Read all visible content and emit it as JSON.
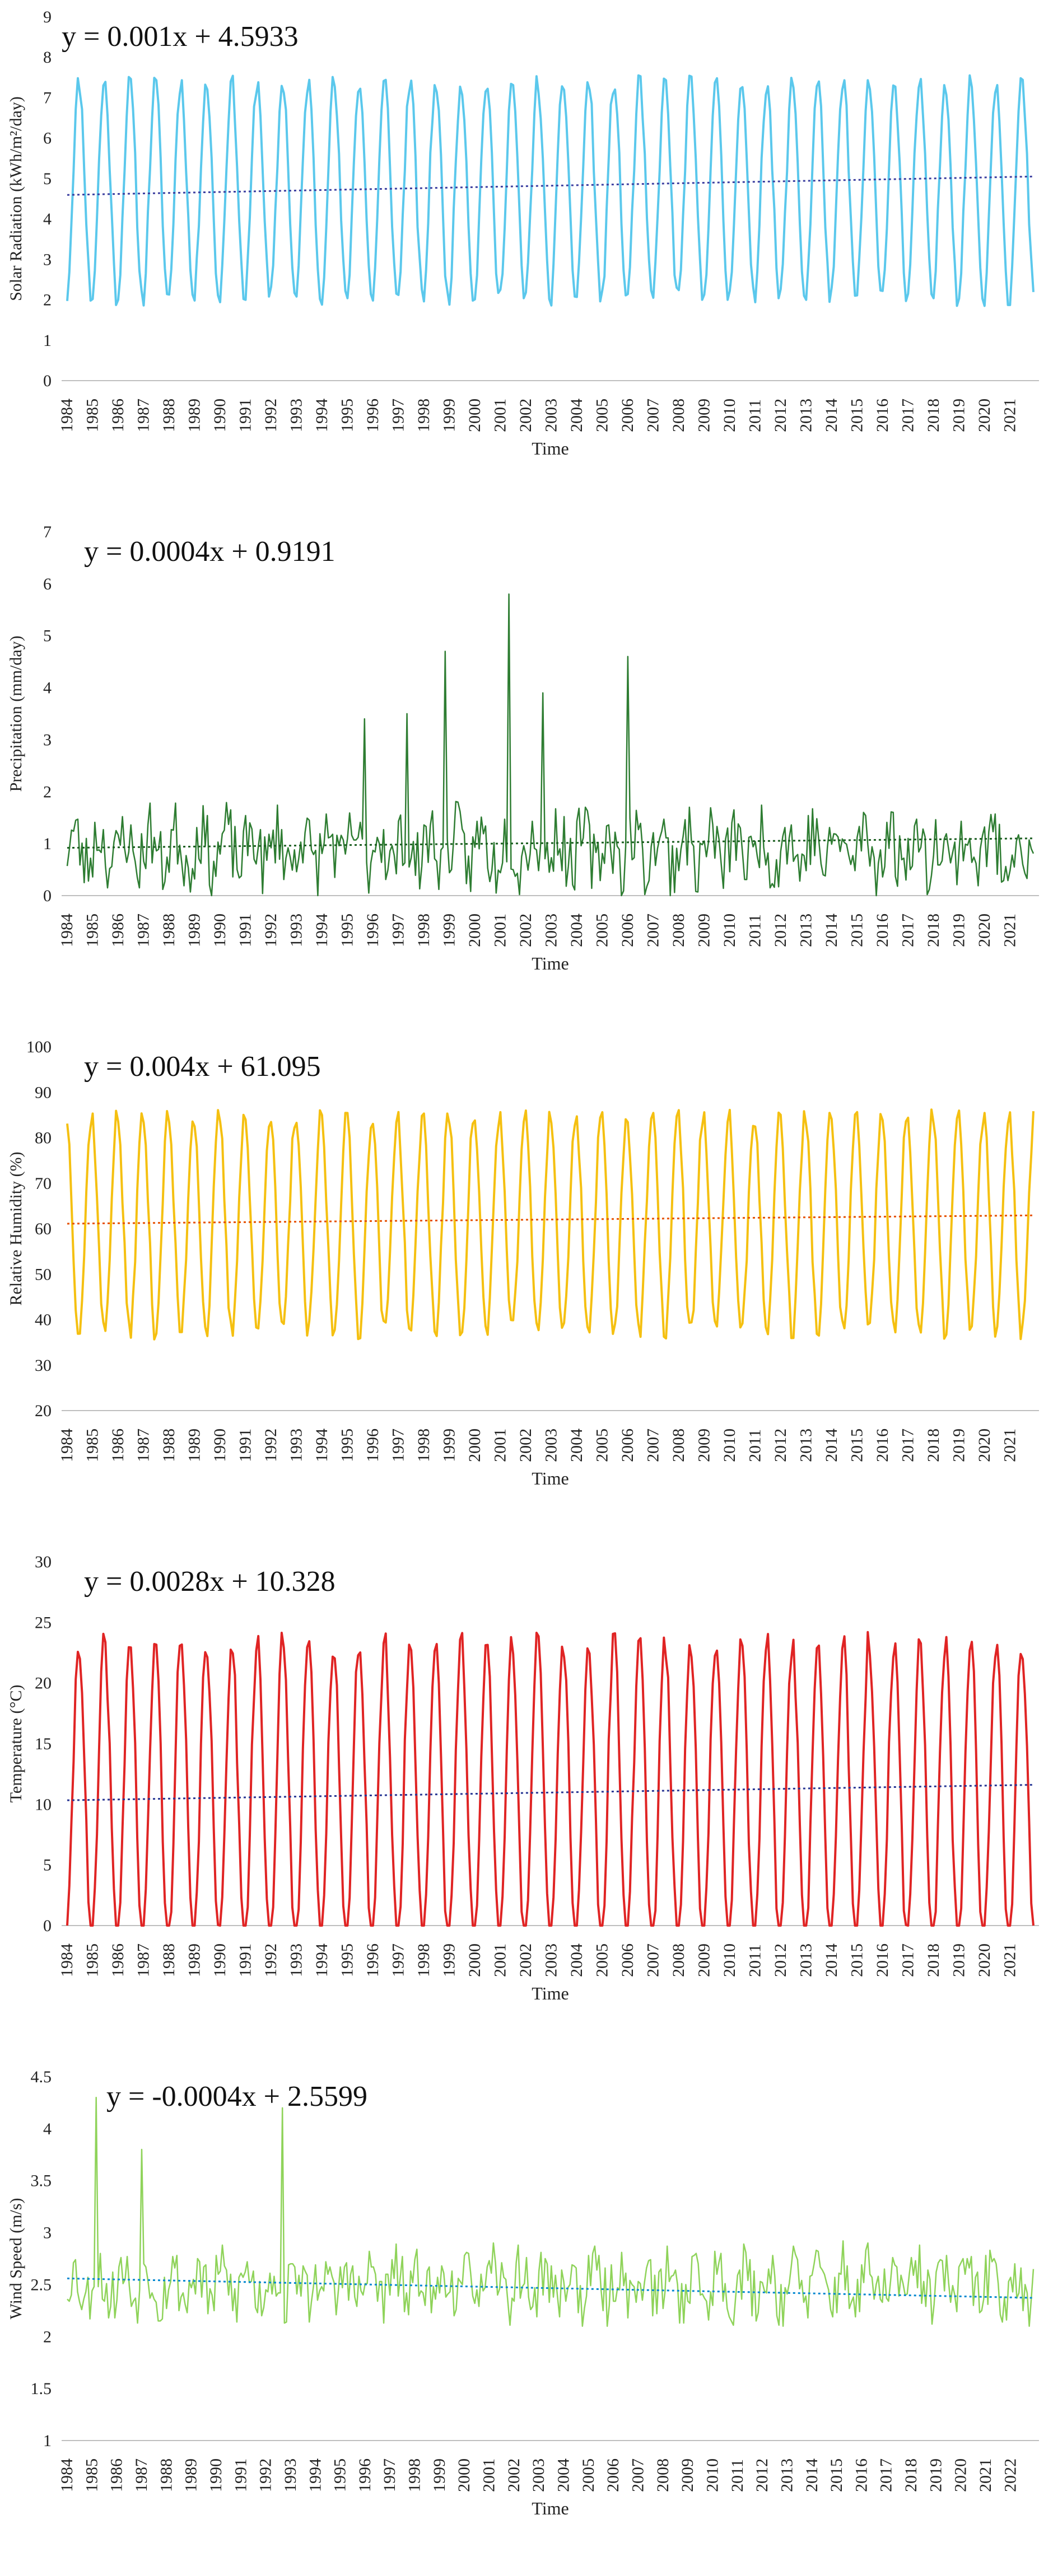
{
  "chart_data": [
    {
      "type": "line",
      "title": "",
      "xlabel": "Time",
      "ylabel": "Solar Radiation (kWh/m²/day)",
      "equation": "y = 0.001x + 4.5933",
      "ylim": [
        0,
        9
      ],
      "yticks": [
        0,
        1,
        2,
        3,
        4,
        5,
        6,
        7,
        8,
        9
      ],
      "years": [
        "1984",
        "1985",
        "1986",
        "1987",
        "1988",
        "1989",
        "1990",
        "1991",
        "1992",
        "1993",
        "1994",
        "1995",
        "1996",
        "1997",
        "1998",
        "1999",
        "2000",
        "2001",
        "2002",
        "2003",
        "2004",
        "2005",
        "2006",
        "2007",
        "2008",
        "2009",
        "2010",
        "2011",
        "2012",
        "2013",
        "2014",
        "2015",
        "2016",
        "2017",
        "2018",
        "2019",
        "2020",
        "2021"
      ],
      "series": [
        {
          "name": "Solar Radiation",
          "color": "#5BC8EC",
          "pattern": "seasonal",
          "min": 2.0,
          "max": 7.4,
          "peak": 0.5,
          "seed": 11
        }
      ],
      "trend": {
        "slope": 0.001,
        "intercept": 4.5933,
        "color": "#3B3FA0"
      },
      "months": 456
    },
    {
      "type": "line",
      "title": "",
      "xlabel": "Time",
      "ylabel": "Precipitation (mm/day)",
      "equation": "y = 0.0004x + 0.9191",
      "ylim": [
        0,
        7
      ],
      "yticks": [
        0,
        1,
        2,
        3,
        4,
        5,
        6,
        7
      ],
      "years": [
        "1984",
        "1985",
        "1986",
        "1987",
        "1988",
        "1989",
        "1990",
        "1991",
        "1992",
        "1993",
        "1994",
        "1995",
        "1996",
        "1997",
        "1998",
        "1999",
        "2000",
        "2001",
        "2002",
        "2003",
        "2004",
        "2005",
        "2006",
        "2007",
        "2008",
        "2009",
        "2010",
        "2011",
        "2012",
        "2013",
        "2014",
        "2015",
        "2016",
        "2017",
        "2018",
        "2019",
        "2020",
        "2021"
      ],
      "series": [
        {
          "name": "Precipitation",
          "color": "#2E7D32",
          "pattern": "noisy",
          "base": 0.9,
          "amp": 0.8,
          "seed": 23,
          "spikes": [
            [
              178,
              4.7
            ],
            [
              208,
              5.8
            ],
            [
              224,
              3.9
            ],
            [
              264,
              4.6
            ],
            [
              140,
              3.4
            ],
            [
              160,
              3.5
            ]
          ]
        }
      ],
      "trend": {
        "slope": 0.0004,
        "intercept": 0.9191,
        "color": "#1B5E20"
      },
      "months": 456
    },
    {
      "type": "line",
      "title": "",
      "xlabel": "Time",
      "ylabel": "Relative Humidity (%)",
      "equation": "y = 0.004x + 61.095",
      "ylim": [
        20,
        100
      ],
      "yticks": [
        20,
        30,
        40,
        50,
        60,
        70,
        80,
        90,
        100
      ],
      "years": [
        "1984",
        "1985",
        "1986",
        "1987",
        "1988",
        "1989",
        "1990",
        "1991",
        "1992",
        "1993",
        "1994",
        "1995",
        "1996",
        "1997",
        "1998",
        "1999",
        "2000",
        "2001",
        "2002",
        "2003",
        "2004",
        "2005",
        "2006",
        "2007",
        "2008",
        "2009",
        "2010",
        "2011",
        "2012",
        "2013",
        "2014",
        "2015",
        "2016",
        "2017",
        "2018",
        "2019",
        "2020",
        "2021"
      ],
      "series": [
        {
          "name": "Relative Humidity",
          "color": "#F5C011",
          "pattern": "seasonal",
          "min": 37,
          "max": 85,
          "peak": 0.0,
          "seed": 37
        }
      ],
      "trend": {
        "slope": 0.004,
        "intercept": 61.095,
        "color": "#E65100"
      },
      "months": 456
    },
    {
      "type": "line",
      "title": "",
      "xlabel": "Time",
      "ylabel": "Temperature (°C)",
      "equation": "y = 0.0028x + 10.328",
      "ylim": [
        0,
        30
      ],
      "yticks": [
        0,
        5,
        10,
        15,
        20,
        25,
        30
      ],
      "years": [
        "1984",
        "1985",
        "1986",
        "1987",
        "1988",
        "1989",
        "1990",
        "1991",
        "1992",
        "1993",
        "1994",
        "1995",
        "1996",
        "1997",
        "1998",
        "1999",
        "2000",
        "2001",
        "2002",
        "2003",
        "2004",
        "2005",
        "2006",
        "2007",
        "2008",
        "2009",
        "2010",
        "2011",
        "2012",
        "2013",
        "2014",
        "2015",
        "2016",
        "2017",
        "2018",
        "2019",
        "2020",
        "2021"
      ],
      "series": [
        {
          "name": "Temperature",
          "color": "#E02424",
          "pattern": "seasonal",
          "min": -1.5,
          "max": 23.5,
          "peak": 0.5,
          "seed": 41
        }
      ],
      "trend": {
        "slope": 0.0028,
        "intercept": 10.328,
        "color": "#283593"
      },
      "months": 456
    },
    {
      "type": "line",
      "title": "",
      "xlabel": "Time",
      "ylabel": "Wind Speed (m/s)",
      "equation": "y = -0.0004x + 2.5599",
      "ylim": [
        1,
        4.5
      ],
      "yticks": [
        1,
        1.5,
        2,
        2.5,
        3,
        3.5,
        4,
        4.5
      ],
      "years": [
        "1984",
        "1985",
        "1986",
        "1987",
        "1988",
        "1989",
        "1990",
        "1991",
        "1992",
        "1993",
        "1994",
        "1995",
        "1996",
        "1997",
        "1998",
        "1999",
        "2000",
        "2001",
        "2002",
        "2003",
        "2004",
        "2005",
        "2006",
        "2007",
        "2008",
        "2009",
        "2010",
        "2011",
        "2012",
        "2013",
        "2014",
        "2015",
        "2016",
        "2017",
        "2018",
        "2019",
        "2020",
        "2021",
        "2022"
      ],
      "series": [
        {
          "name": "Wind Speed",
          "color": "#8FD35A",
          "pattern": "noisy",
          "base": 2.5,
          "amp": 0.35,
          "seed": 53,
          "spikes": [
            [
              14,
              4.3
            ],
            [
              36,
              3.8
            ],
            [
              104,
              4.2
            ]
          ]
        }
      ],
      "trend": {
        "slope": -0.0004,
        "intercept": 2.5599,
        "color": "#0288D1"
      },
      "months": 468
    }
  ]
}
